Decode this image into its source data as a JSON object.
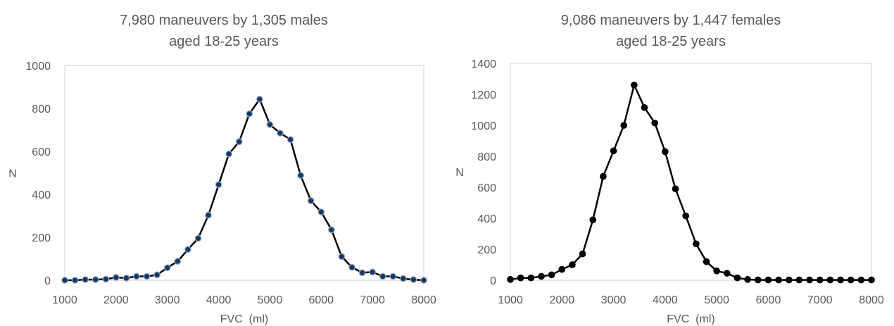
{
  "chart_data": [
    {
      "type": "line",
      "title": [
        "7,980 maneuvers by 1,305 males",
        "aged 18-25 years"
      ],
      "xlabel": "FVC  (ml)",
      "ylabel": "N",
      "xlim": [
        1000,
        8000
      ],
      "ylim": [
        0,
        1000
      ],
      "xticks": [
        1000,
        2000,
        3000,
        4000,
        5000,
        6000,
        7000,
        8000
      ],
      "yticks": [
        0,
        200,
        400,
        600,
        800,
        1000
      ],
      "grid": false,
      "legend": "none",
      "line_color": "#000000",
      "marker_fill": "#17375e",
      "marker_stroke": "#8ea9c8",
      "series": [
        {
          "x": [
            1000,
            1200,
            1400,
            1600,
            1800,
            2000,
            2200,
            2400,
            2600,
            2800,
            3000,
            3200,
            3400,
            3600,
            3800,
            4000,
            4200,
            4400,
            4600,
            4800,
            5000,
            5200,
            5400,
            5600,
            5800,
            6000,
            6200,
            6400,
            6600,
            6800,
            7000,
            7200,
            7400,
            7600,
            7800,
            8000
          ],
          "values": [
            0,
            0,
            3,
            3,
            5,
            13,
            10,
            18,
            18,
            25,
            58,
            88,
            143,
            195,
            303,
            445,
            588,
            645,
            775,
            843,
            725,
            685,
            655,
            488,
            370,
            318,
            235,
            110,
            60,
            35,
            38,
            18,
            18,
            8,
            3,
            0
          ]
        }
      ]
    },
    {
      "type": "line",
      "title": [
        "9,086 maneuvers by 1,447 females",
        "aged 18-25 years"
      ],
      "xlabel": "FVC  (ml)",
      "ylabel": "N",
      "xlim": [
        1000,
        8000
      ],
      "ylim": [
        0,
        1400
      ],
      "xticks": [
        1000,
        2000,
        3000,
        4000,
        5000,
        6000,
        7000,
        8000
      ],
      "yticks": [
        0,
        200,
        400,
        600,
        800,
        1000,
        1200,
        1400
      ],
      "grid": false,
      "legend": "none",
      "line_color": "#000000",
      "marker_fill": "#000000",
      "marker_stroke": "#000000",
      "series": [
        {
          "x": [
            1000,
            1200,
            1400,
            1600,
            1800,
            2000,
            2200,
            2400,
            2600,
            2800,
            3000,
            3200,
            3400,
            3600,
            3800,
            4000,
            4200,
            4400,
            4600,
            4800,
            5000,
            5200,
            5400,
            5600,
            5800,
            6000,
            6200,
            6400,
            6600,
            6800,
            7000,
            7200,
            7400,
            7600,
            7800,
            8000
          ],
          "values": [
            5,
            15,
            15,
            25,
            35,
            70,
            100,
            170,
            390,
            670,
            835,
            1000,
            1260,
            1115,
            1015,
            830,
            590,
            415,
            235,
            120,
            60,
            45,
            15,
            5,
            2,
            2,
            2,
            2,
            2,
            2,
            2,
            2,
            2,
            2,
            2,
            2
          ]
        }
      ]
    }
  ]
}
